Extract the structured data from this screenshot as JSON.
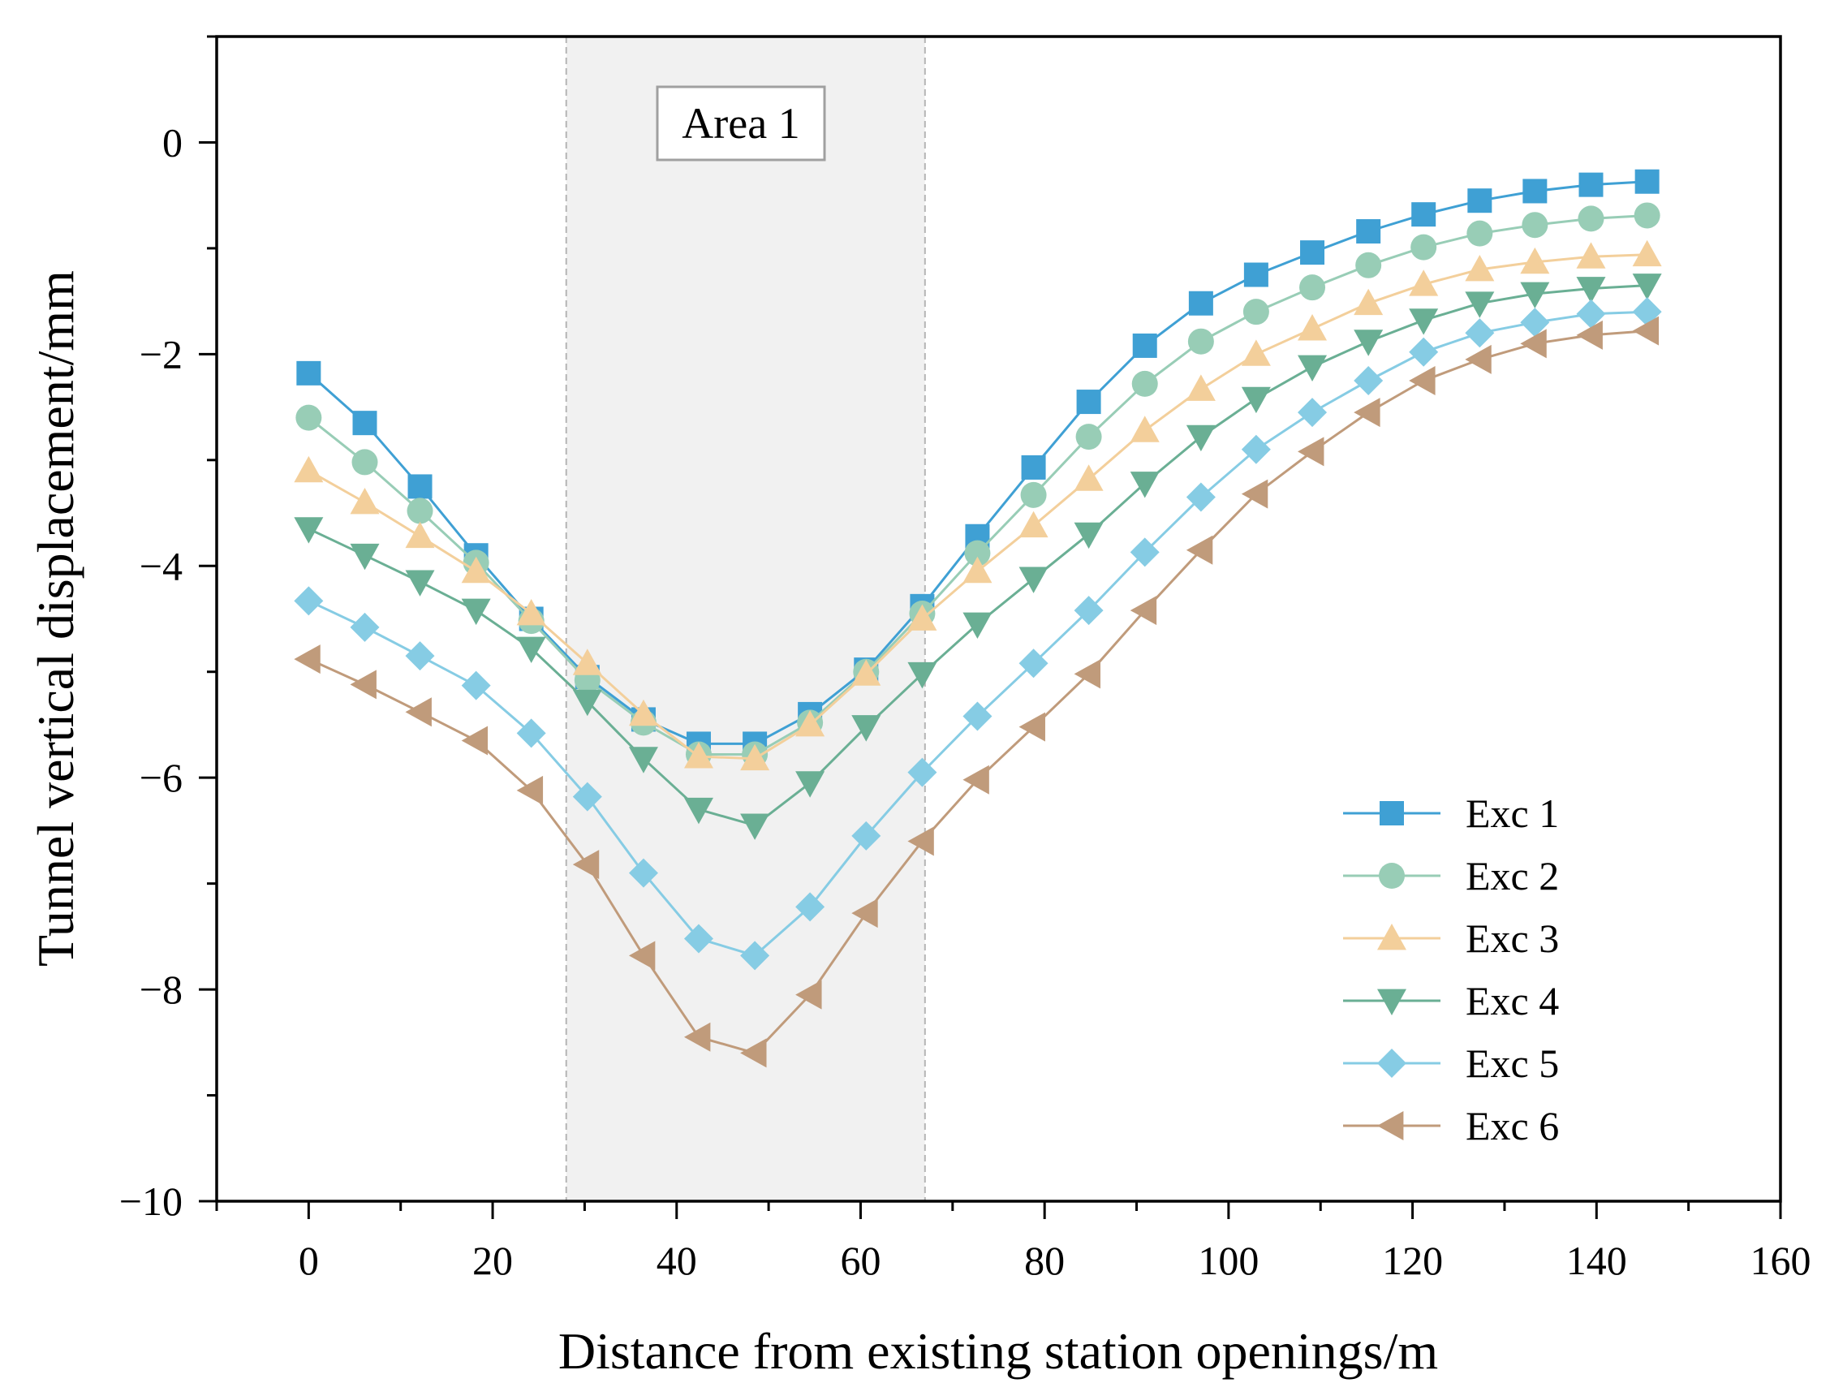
{
  "chart_data": {
    "type": "line",
    "title": "",
    "xlabel": "Distance from existing station openings/m",
    "ylabel": "Tunnel vertical displacement/mm",
    "xlim": [
      -10,
      160
    ],
    "ylim": [
      -10,
      1
    ],
    "xticks": [
      0,
      20,
      40,
      60,
      80,
      100,
      120,
      140,
      160
    ],
    "yticks": [
      0,
      -2,
      -4,
      -6,
      -8,
      -10
    ],
    "xtick_labels": [
      "0",
      "20",
      "40",
      "60",
      "80",
      "100",
      "120",
      "140",
      "160"
    ],
    "ytick_labels": [
      "0",
      "−2",
      "−4",
      "−6",
      "−8",
      "−10"
    ],
    "x": [
      0,
      6.1,
      12.1,
      18.2,
      24.2,
      30.3,
      36.4,
      42.4,
      48.5,
      54.5,
      60.6,
      66.7,
      72.7,
      78.8,
      84.8,
      90.9,
      97.0,
      103.0,
      109.1,
      115.2,
      121.2,
      127.3,
      133.3,
      139.4,
      145.5
    ],
    "shaded_region": {
      "x_range": [
        28,
        67
      ],
      "label": "Area 1",
      "color": "#f1f1f1"
    },
    "legend_position": "lower-right",
    "series": [
      {
        "name": "Exc 1",
        "color": "#3fa0d4",
        "marker": "square",
        "values": [
          -2.18,
          -2.65,
          -3.25,
          -3.9,
          -4.5,
          -5.05,
          -5.45,
          -5.68,
          -5.68,
          -5.4,
          -4.98,
          -4.38,
          -3.72,
          -3.07,
          -2.45,
          -1.92,
          -1.52,
          -1.25,
          -1.04,
          -0.84,
          -0.68,
          -0.55,
          -0.46,
          -0.4,
          -0.37
        ]
      },
      {
        "name": "Exc 2",
        "color": "#98cdb6",
        "marker": "circle",
        "values": [
          -2.6,
          -3.02,
          -3.48,
          -3.97,
          -4.52,
          -5.08,
          -5.48,
          -5.78,
          -5.78,
          -5.48,
          -5.0,
          -4.45,
          -3.88,
          -3.33,
          -2.78,
          -2.28,
          -1.88,
          -1.6,
          -1.37,
          -1.16,
          -0.99,
          -0.86,
          -0.78,
          -0.72,
          -0.69
        ]
      },
      {
        "name": "Exc 3",
        "color": "#f3cf9b",
        "marker": "triangle-up",
        "values": [
          -3.1,
          -3.4,
          -3.72,
          -4.05,
          -4.45,
          -4.92,
          -5.4,
          -5.8,
          -5.82,
          -5.5,
          -5.02,
          -4.5,
          -4.05,
          -3.62,
          -3.18,
          -2.72,
          -2.33,
          -2.0,
          -1.76,
          -1.52,
          -1.34,
          -1.2,
          -1.13,
          -1.08,
          -1.06
        ]
      },
      {
        "name": "Exc 4",
        "color": "#6aaf94",
        "marker": "triangle-down",
        "values": [
          -3.65,
          -3.9,
          -4.15,
          -4.42,
          -4.78,
          -5.28,
          -5.82,
          -6.3,
          -6.45,
          -6.05,
          -5.52,
          -5.02,
          -4.55,
          -4.12,
          -3.7,
          -3.22,
          -2.78,
          -2.42,
          -2.12,
          -1.88,
          -1.68,
          -1.52,
          -1.43,
          -1.38,
          -1.35
        ]
      },
      {
        "name": "Exc 5",
        "color": "#86cce4",
        "marker": "diamond",
        "values": [
          -4.33,
          -4.58,
          -4.85,
          -5.13,
          -5.58,
          -6.18,
          -6.9,
          -7.52,
          -7.68,
          -7.22,
          -6.55,
          -5.95,
          -5.42,
          -4.92,
          -4.42,
          -3.87,
          -3.35,
          -2.9,
          -2.55,
          -2.25,
          -1.98,
          -1.8,
          -1.7,
          -1.62,
          -1.6
        ]
      },
      {
        "name": "Exc 6",
        "color": "#c09b7b",
        "marker": "triangle-left",
        "values": [
          -4.88,
          -5.12,
          -5.38,
          -5.65,
          -6.12,
          -6.82,
          -7.68,
          -8.45,
          -8.6,
          -8.05,
          -7.28,
          -6.6,
          -6.02,
          -5.52,
          -5.02,
          -4.42,
          -3.85,
          -3.32,
          -2.92,
          -2.55,
          -2.25,
          -2.05,
          -1.9,
          -1.82,
          -1.78
        ]
      }
    ]
  }
}
